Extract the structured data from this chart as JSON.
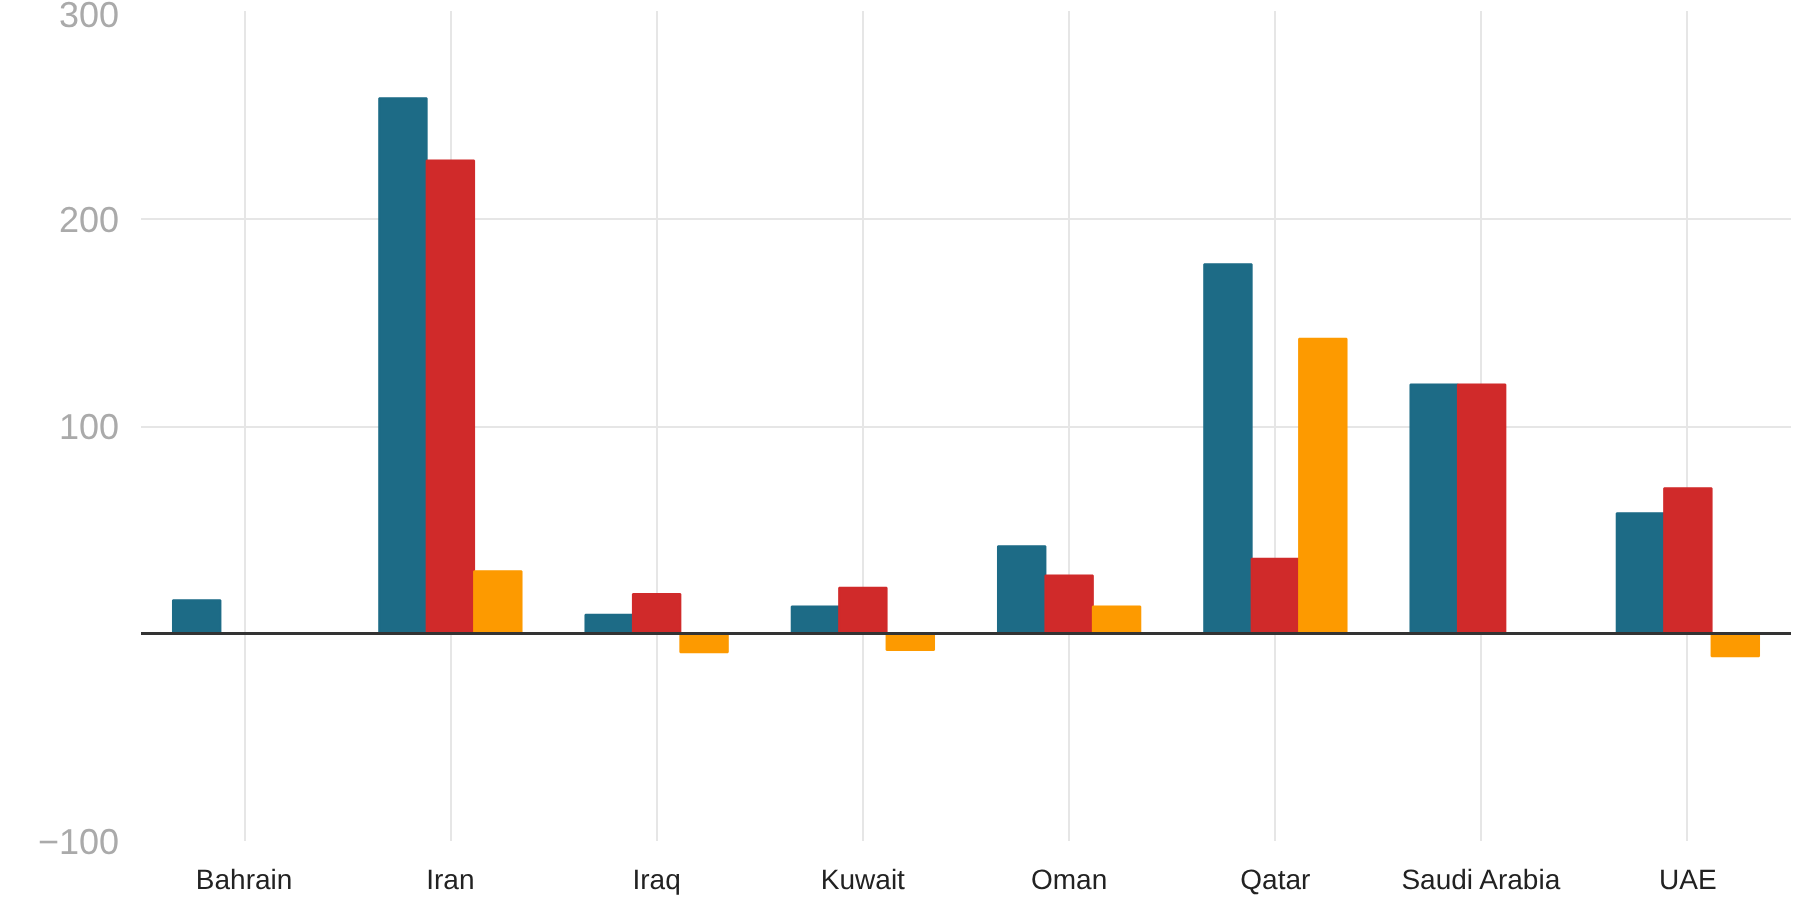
{
  "chart_data": {
    "type": "bar",
    "categories": [
      "Bahrain",
      "Iran",
      "Iraq",
      "Kuwait",
      "Oman",
      "Qatar",
      "Saudi Arabia",
      "UAE"
    ],
    "series": [
      {
        "color": "#1d6b86",
        "values": [
          16,
          258,
          9,
          13,
          42,
          178,
          120,
          58
        ]
      },
      {
        "color": "#d02a2a",
        "values": [
          null,
          228,
          19,
          22,
          28,
          36,
          120,
          70
        ]
      },
      {
        "color": "#fd9a00",
        "values": [
          null,
          30,
          -9,
          -8,
          13,
          142,
          null,
          -11
        ]
      }
    ],
    "ylim": [
      -100,
      300
    ],
    "yticks": [
      {
        "value": -100,
        "label": "−100"
      },
      {
        "value": 0,
        "label": null
      },
      100,
      200,
      300
    ],
    "grid": true,
    "ref_lines": [
      {
        "axis": "y",
        "value": 0,
        "color": "#333333"
      }
    ]
  }
}
